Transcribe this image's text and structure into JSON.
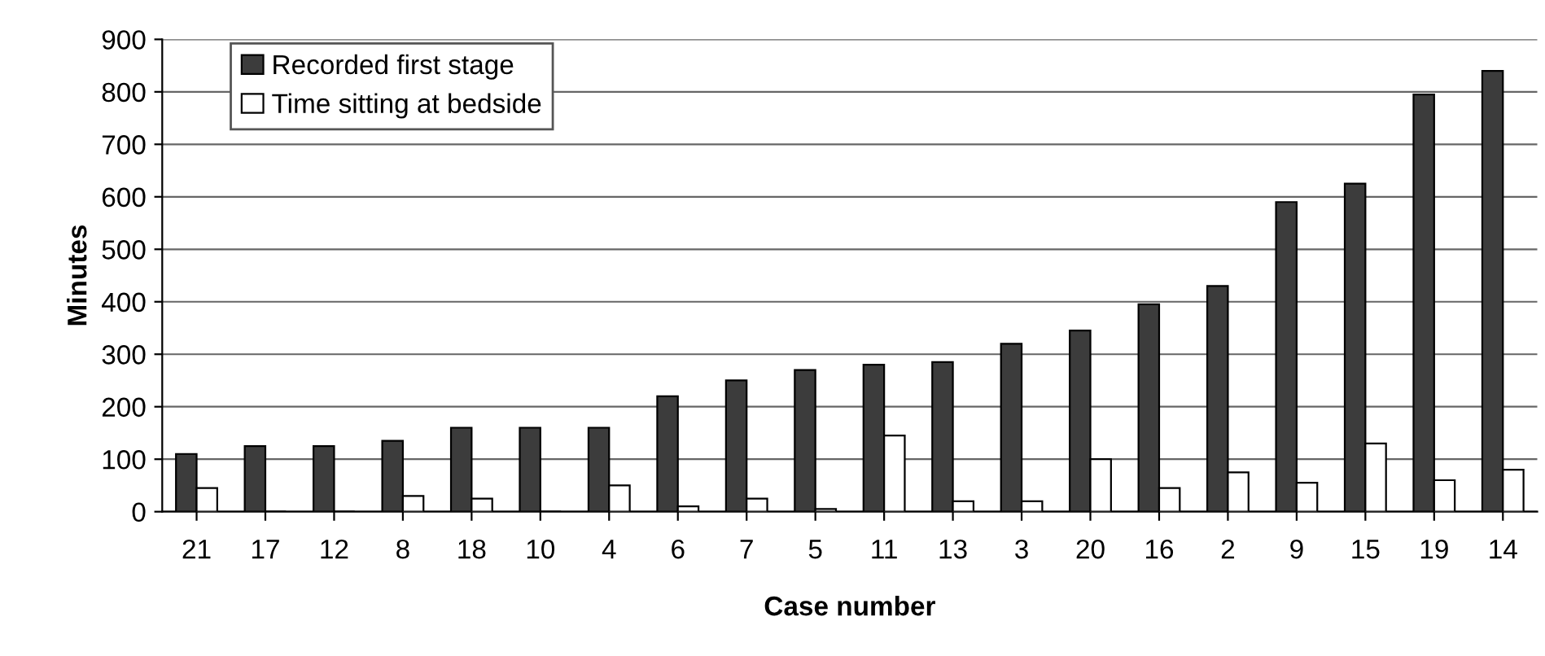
{
  "chart_data": {
    "type": "bar",
    "xlabel": "Case number",
    "ylabel": "Minutes",
    "categories": [
      "21",
      "17",
      "12",
      "8",
      "18",
      "10",
      "4",
      "6",
      "7",
      "5",
      "11",
      "13",
      "3",
      "20",
      "16",
      "2",
      "9",
      "15",
      "19",
      "14"
    ],
    "series": [
      {
        "name": "Recorded first stage",
        "color": "#3c3c3c",
        "values": [
          110,
          125,
          125,
          135,
          160,
          160,
          160,
          220,
          250,
          270,
          280,
          285,
          320,
          345,
          395,
          430,
          590,
          625,
          795,
          840
        ]
      },
      {
        "name": "Time sitting at bedside",
        "color": "#ffffff",
        "values": [
          45,
          0,
          0,
          30,
          25,
          0,
          50,
          10,
          25,
          5,
          145,
          20,
          20,
          100,
          45,
          75,
          55,
          130,
          60,
          80
        ]
      }
    ],
    "ylim": [
      0,
      900
    ],
    "yticks": [
      0,
      100,
      200,
      300,
      400,
      500,
      600,
      700,
      800,
      900
    ],
    "grid": "y",
    "legend": "top left"
  }
}
